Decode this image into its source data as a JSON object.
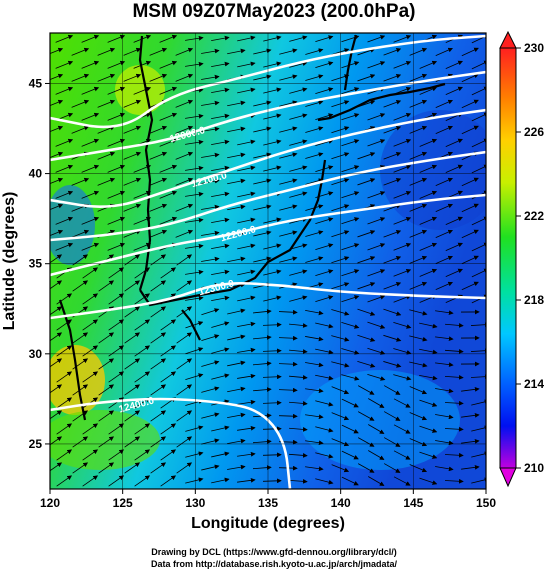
{
  "title": "MSM 09Z07May2023 (200.0hPa)",
  "x_axis": {
    "label": "Longitude (degrees)",
    "ticks": [
      "120",
      "125",
      "130",
      "135",
      "140",
      "145",
      "150"
    ],
    "tick_values": [
      120,
      125,
      130,
      135,
      140,
      145,
      150
    ],
    "range": [
      120,
      150
    ]
  },
  "y_axis": {
    "label": "Latitude  (degrees)",
    "ticks": [
      "25",
      "30",
      "35",
      "40",
      "45"
    ],
    "tick_values": [
      25,
      30,
      35,
      40,
      45
    ],
    "range": [
      22.5,
      47.8
    ]
  },
  "colorbar": {
    "ticks": [
      "230",
      "226",
      "222",
      "218",
      "214",
      "210"
    ],
    "tick_values": [
      230,
      226,
      222,
      218,
      214,
      210
    ],
    "range": [
      210,
      230
    ],
    "colors": [
      "#ff00ff",
      "#9000ff",
      "#0000ff",
      "#0070ff",
      "#00d8ff",
      "#00e080",
      "#40e000",
      "#c0f000",
      "#ffc000",
      "#ff6000",
      "#ff0000"
    ]
  },
  "contours": [
    {
      "label": "12000.0",
      "lon": 129.5,
      "lat": 42.0
    },
    {
      "label": "12100.0",
      "lon": 131.0,
      "lat": 39.5
    },
    {
      "label": "12200.0",
      "lon": 133.0,
      "lat": 36.5
    },
    {
      "label": "12300.0",
      "lon": 131.5,
      "lat": 33.5
    },
    {
      "label": "12400.0",
      "lon": 126.0,
      "lat": 27.0
    }
  ],
  "footer": {
    "credit_drawing": "Drawing by DCL (https://www.gfd-dennou.org/library/dcl/)",
    "credit_data": "Data from http://database.rish.kyoto-u.ac.jp/arch/jmadata/"
  }
}
